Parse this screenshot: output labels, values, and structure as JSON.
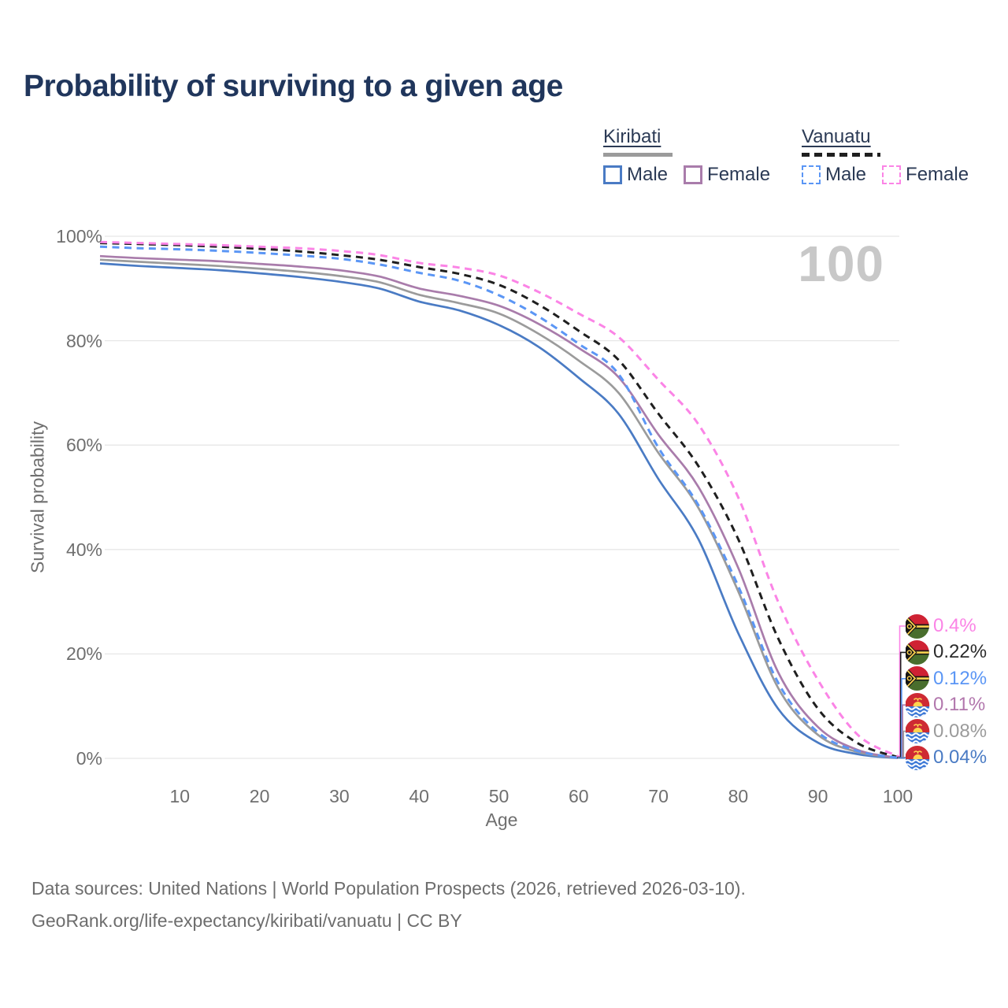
{
  "title": "Probability of surviving to a given age",
  "watermark": "100",
  "legend": {
    "groups": [
      {
        "name": "Kiribati",
        "line_style": "solid",
        "line_color": "#9b9b9b",
        "items": [
          {
            "label": "Male",
            "color": "#4a7bc4",
            "dashed": false,
            "series": "kiribati-male"
          },
          {
            "label": "Female",
            "color": "#a97cab",
            "dashed": false,
            "series": "kiribati-female"
          }
        ]
      },
      {
        "name": "Vanuatu",
        "line_style": "dashed",
        "line_color": "#1f1f1f",
        "items": [
          {
            "label": "Male",
            "color": "#5b96f5",
            "dashed": true,
            "series": "vanuatu-male"
          },
          {
            "label": "Female",
            "color": "#fb84e6",
            "dashed": true,
            "series": "vanuatu-female"
          }
        ]
      }
    ]
  },
  "axes": {
    "y_label": "Survival probability",
    "y_ticks": [
      "0%",
      "20%",
      "40%",
      "60%",
      "80%",
      "100%"
    ],
    "y_tick_values": [
      0,
      20,
      40,
      60,
      80,
      100
    ],
    "x_label": "Age",
    "x_ticks": [
      "10",
      "20",
      "30",
      "40",
      "50",
      "60",
      "70",
      "80",
      "90",
      "100"
    ],
    "x_tick_values": [
      10,
      20,
      30,
      40,
      50,
      60,
      70,
      80,
      90,
      100
    ]
  },
  "chart_data": {
    "type": "line",
    "title": "Probability of surviving to a given age",
    "xlabel": "Age",
    "ylabel": "Survival probability",
    "xlim": [
      0,
      100
    ],
    "ylim": [
      0,
      100
    ],
    "grid": "horizontal",
    "legend_position": "top-right",
    "x": [
      0,
      5,
      10,
      15,
      20,
      25,
      30,
      35,
      40,
      45,
      50,
      55,
      60,
      65,
      70,
      75,
      80,
      85,
      90,
      95,
      100
    ],
    "series": [
      {
        "name": "Kiribati Male",
        "id": "kiribati-male",
        "color": "#4a7bc4",
        "dashed": false,
        "values": [
          94.8,
          94.3,
          93.9,
          93.5,
          92.9,
          92.2,
          91.3,
          90.0,
          87.5,
          85.8,
          83.0,
          78.8,
          72.9,
          66.0,
          53.5,
          42.0,
          24.0,
          9.5,
          3.0,
          0.8,
          0.04
        ]
      },
      {
        "name": "Kiribati Both sexes",
        "id": "kiribati-all",
        "color": "#9b9b9b",
        "dashed": false,
        "values": [
          95.5,
          95.1,
          94.7,
          94.3,
          93.8,
          93.2,
          92.4,
          91.2,
          88.8,
          87.2,
          85.2,
          81.3,
          76.2,
          70.0,
          58.5,
          48.0,
          32.0,
          13.5,
          4.5,
          1.2,
          0.08
        ]
      },
      {
        "name": "Kiribati Female",
        "id": "kiribati-female",
        "color": "#a97cab",
        "dashed": false,
        "values": [
          96.2,
          95.8,
          95.5,
          95.2,
          94.7,
          94.2,
          93.5,
          92.3,
          90.0,
          88.6,
          86.7,
          83.2,
          78.6,
          73.0,
          62.0,
          52.0,
          36.5,
          16.5,
          6.0,
          1.6,
          0.11
        ]
      },
      {
        "name": "Vanuatu Both sexes",
        "id": "vanuatu-all",
        "color": "#1f1f1f",
        "dashed": true,
        "values": [
          98.7,
          98.5,
          98.3,
          98.0,
          97.6,
          97.1,
          96.4,
          95.5,
          94.1,
          92.8,
          90.7,
          86.9,
          81.9,
          76.3,
          66.0,
          56.0,
          42.0,
          23.0,
          9.5,
          2.9,
          0.22
        ]
      },
      {
        "name": "Vanuatu Male",
        "id": "vanuatu-male",
        "color": "#5b96f5",
        "dashed": true,
        "values": [
          98.0,
          97.7,
          97.5,
          97.2,
          96.8,
          96.3,
          95.7,
          94.6,
          93.0,
          91.5,
          88.7,
          84.6,
          79.4,
          73.6,
          59.5,
          48.5,
          33.0,
          14.5,
          5.0,
          1.4,
          0.12
        ]
      },
      {
        "name": "Vanuatu Female",
        "id": "vanuatu-female",
        "color": "#fb84e6",
        "dashed": true,
        "values": [
          98.9,
          98.7,
          98.5,
          98.3,
          98.0,
          97.7,
          97.2,
          96.4,
          94.9,
          94.0,
          92.5,
          89.3,
          85.2,
          80.7,
          72.5,
          64.0,
          50.0,
          30.0,
          15.0,
          4.5,
          0.4
        ]
      }
    ],
    "end_labels": [
      {
        "value": "0.4%",
        "series": "vanuatu-female",
        "flag": "vanuatu",
        "color": "#fb84e6"
      },
      {
        "value": "0.22%",
        "series": "vanuatu-all",
        "flag": "vanuatu",
        "color": "#2b2b2b"
      },
      {
        "value": "0.12%",
        "series": "vanuatu-male",
        "flag": "vanuatu",
        "color": "#5b96f5"
      },
      {
        "value": "0.11%",
        "series": "kiribati-female",
        "flag": "kiribati",
        "color": "#b277ad"
      },
      {
        "value": "0.08%",
        "series": "kiribati-all",
        "flag": "kiribati",
        "color": "#9b9b9b"
      },
      {
        "value": "0.04%",
        "series": "kiribati-male",
        "flag": "kiribati",
        "color": "#4a7bc4"
      }
    ]
  },
  "footer": {
    "line1": "Data sources: United Nations | World Population Prospects (2026, retrieved 2026-03-10).",
    "line2": "GeoRank.org/life-expectancy/kiribati/vanuatu | CC BY"
  }
}
